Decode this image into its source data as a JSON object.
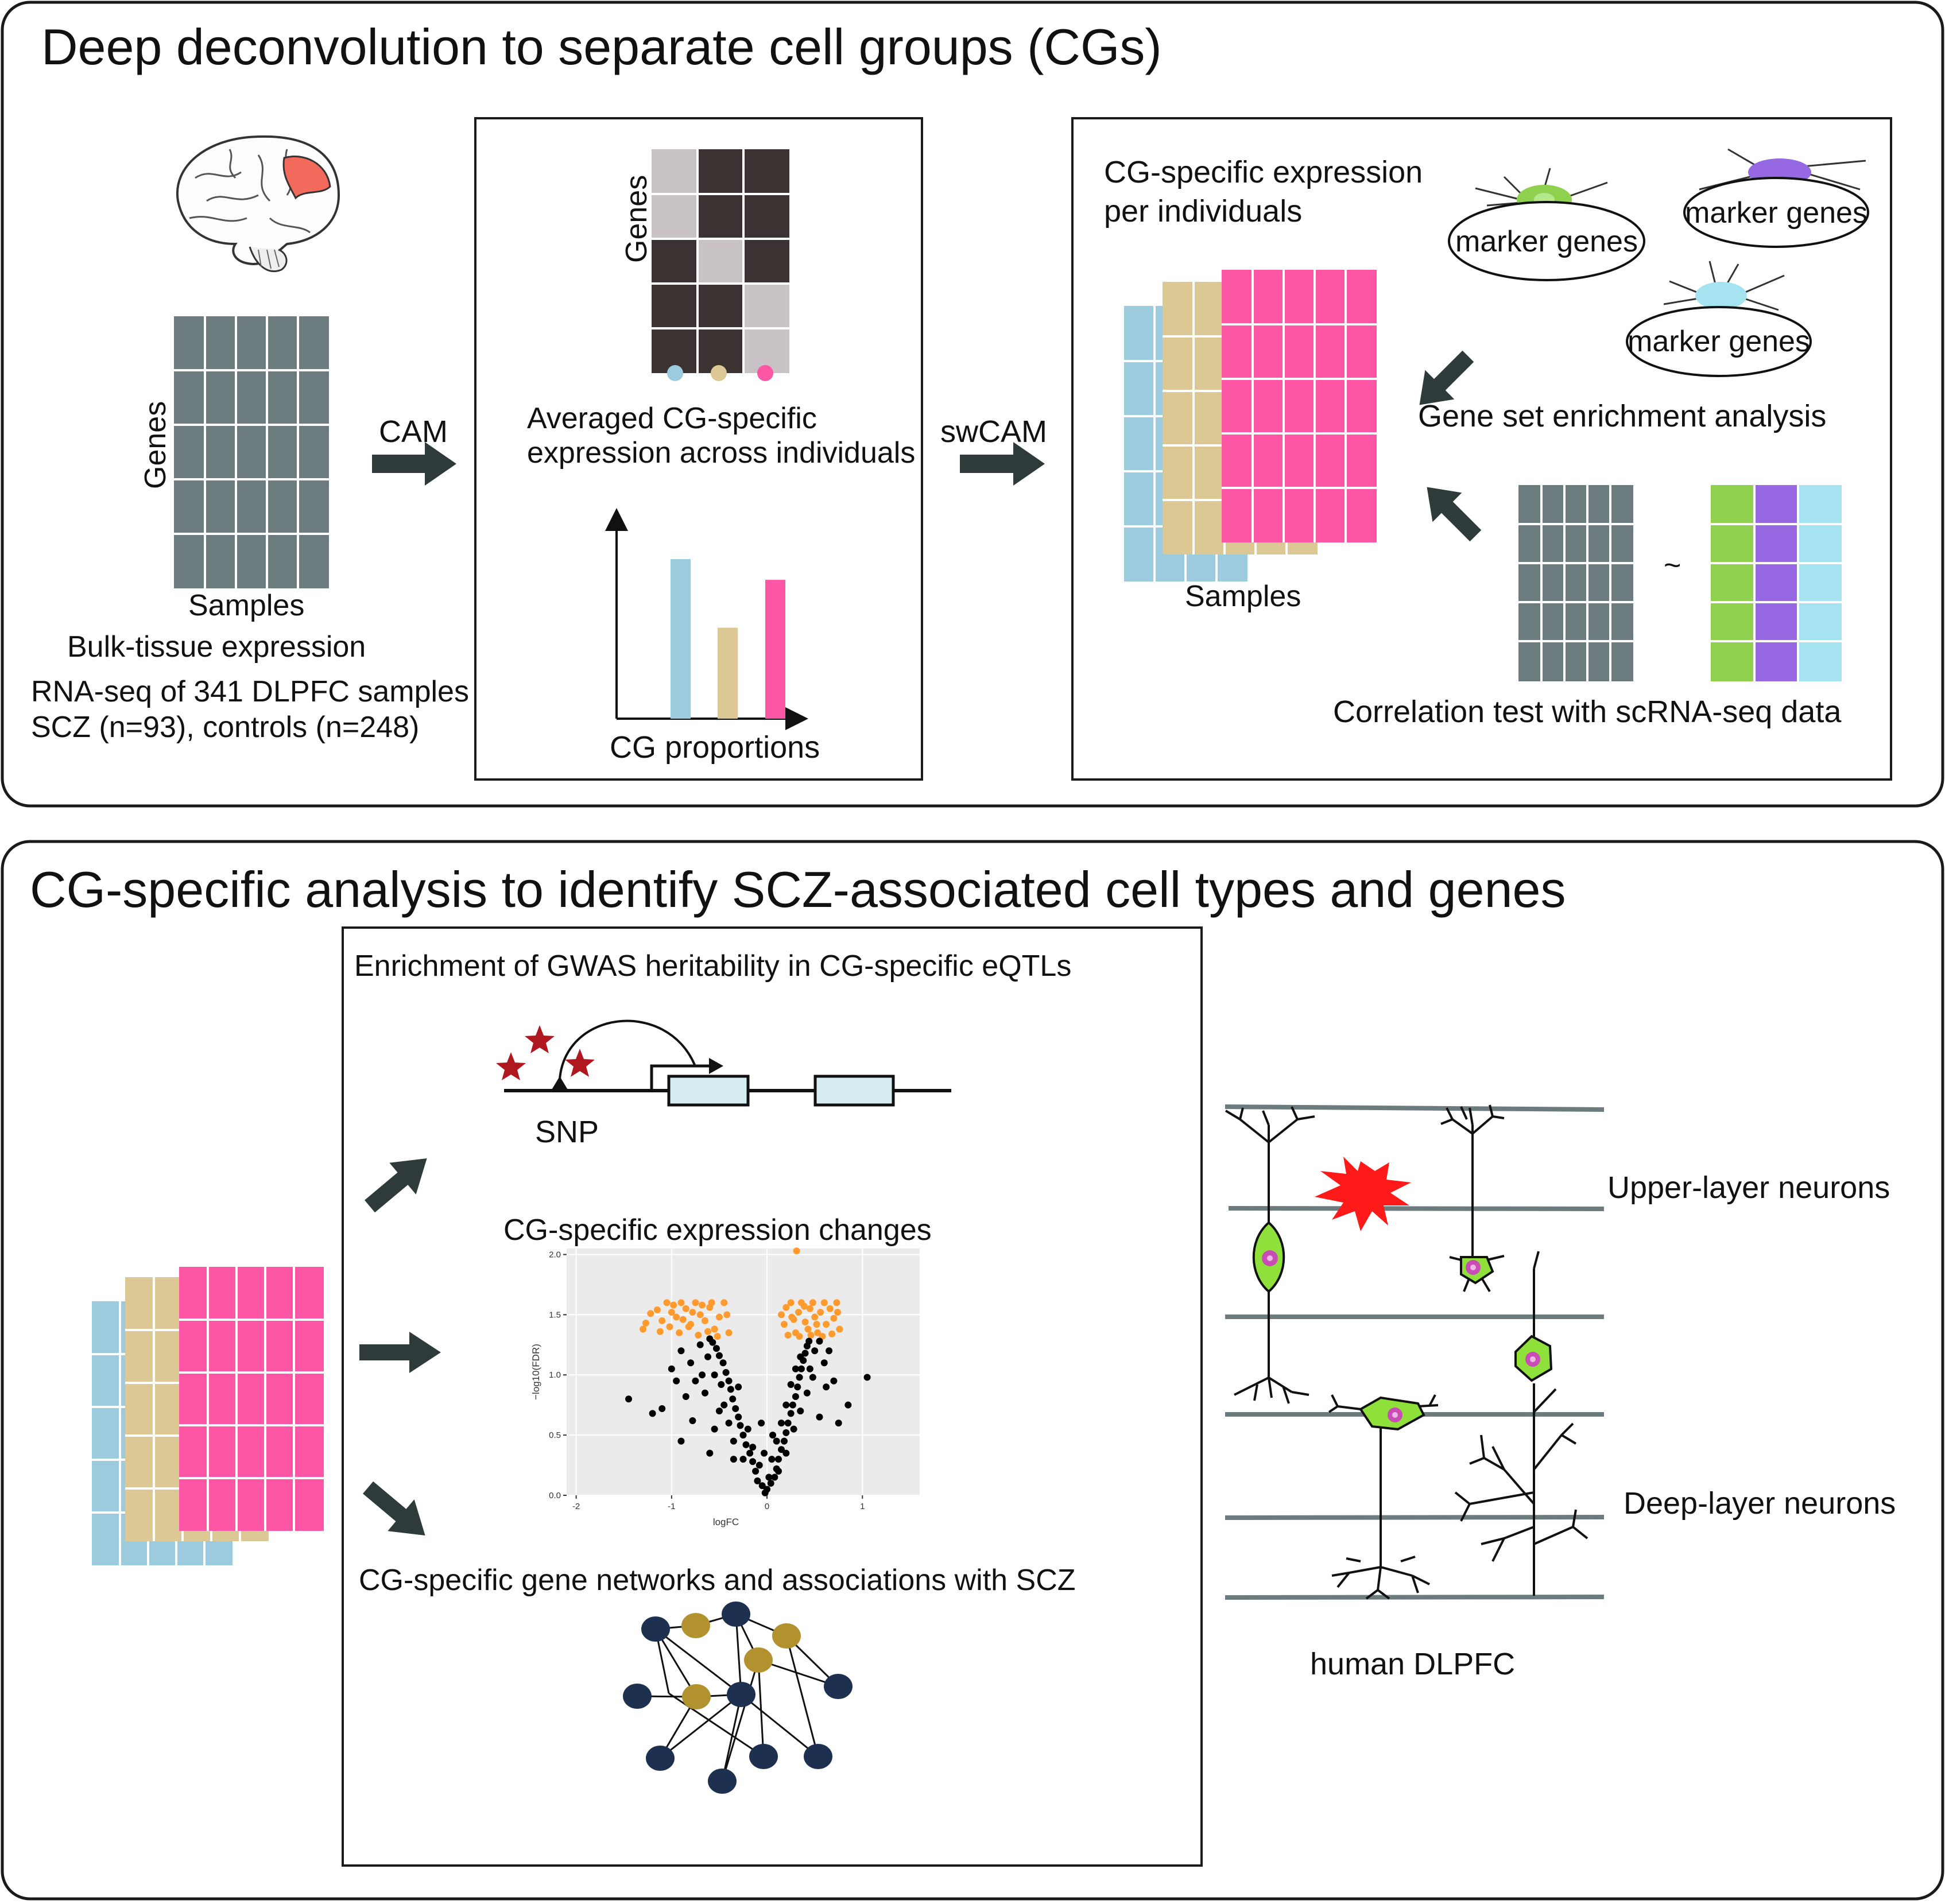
{
  "panel_top": {
    "title": "Deep deconvolution to separate cell groups (CGs)",
    "bulk": {
      "genes_label": "Genes",
      "samples_label": "Samples",
      "caption": "Bulk-tissue expression",
      "description_line1": "RNA-seq of 341 DLPFC samples",
      "description_line2": "SCZ (n=93),  controls (n=248)"
    },
    "arrow_cam": "CAM",
    "cam_box": {
      "genes_label": "Genes",
      "caption_line1": "Averaged CG-specific",
      "caption_line2": "expression across individuals",
      "proportions_label": "CG proportions",
      "proportions_values": [
        1.0,
        0.57,
        0.87
      ]
    },
    "arrow_swcam": "swCAM",
    "swcam_box": {
      "title_line1": "CG-specific expression",
      "title_line2": "per individuals",
      "samples_label": "Samples",
      "marker_genes": [
        "marker genes",
        "marker genes",
        "marker genes"
      ],
      "gsea_label": "Gene set enrichment analysis",
      "tilde": "~",
      "correlation_label": "Correlation test with scRNA-seq data"
    }
  },
  "panel_bottom": {
    "title": "CG-specific analysis to identify SCZ-associated cell types and genes",
    "gwas": {
      "title": "Enrichment of GWAS heritability in CG-specific eQTLs",
      "snp_label": "SNP"
    },
    "expression_changes": {
      "title": "CG-specific expression changes"
    },
    "networks": {
      "title": "CG-specific gene networks and associations with SCZ"
    },
    "dlpfc": {
      "upper_label": "Upper-layer neurons",
      "deep_label": "Deep-layer neurons",
      "caption": "human DLPFC"
    }
  },
  "colors": {
    "panel_border": "#1a1a1a",
    "matrix_gray": "#6b7b7e",
    "cg_blue": "#9ccbdd",
    "cg_tan": "#dcc894",
    "cg_pink": "#fd56a4",
    "heat_dark": "#3a3331",
    "heat_light": "#c8c1c5",
    "arrow": "#2f3a3a",
    "sc_green": "#8fd14f",
    "sc_purple": "#9668e2",
    "sc_cyan": "#a5e3f0",
    "volcano_sig": "#ff9b2e",
    "volcano_ns": "#000000",
    "volcano_bg": "#ebebeb",
    "network_navy": "#1e3050",
    "network_gold": "#b2912f",
    "star_red": "#b01820",
    "burst_red": "#ff1a1a",
    "neuron_green": "#8fe03a",
    "neuron_nucleus": "#c84db4",
    "layer_line": "#6b7b7e"
  },
  "chart_data": {
    "type": "scatter",
    "title": "",
    "xlabel": "logFC",
    "ylabel": "−log10(FDR)",
    "xlim": [
      -2.1,
      1.6
    ],
    "ylim": [
      0,
      2.05
    ],
    "x_ticks": [
      "-2",
      "-1",
      "0",
      "1"
    ],
    "x_tick_values": [
      -2,
      -1,
      0,
      1
    ],
    "y_ticks": [
      "0.0",
      "0.5",
      "1.0",
      "1.5",
      "2.0"
    ],
    "y_tick_values": [
      0.0,
      0.5,
      1.0,
      1.5,
      2.0
    ],
    "grid": true,
    "series": [
      {
        "significant": true,
        "color": "#ff9b2e",
        "points": [
          [
            -1.3,
            1.38
          ],
          [
            -1.27,
            1.43
          ],
          [
            -1.22,
            1.51
          ],
          [
            -1.15,
            1.54
          ],
          [
            -1.1,
            1.45
          ],
          [
            -1.05,
            1.6
          ],
          [
            -1.0,
            1.52
          ],
          [
            -0.95,
            1.48
          ],
          [
            -0.9,
            1.6
          ],
          [
            -0.85,
            1.55
          ],
          [
            -0.8,
            1.42
          ],
          [
            -0.75,
            1.6
          ],
          [
            -0.7,
            1.5
          ],
          [
            -0.65,
            1.45
          ],
          [
            -0.6,
            1.56
          ],
          [
            -0.55,
            1.38
          ],
          [
            -0.5,
            1.48
          ],
          [
            -0.45,
            1.6
          ],
          [
            -0.4,
            1.35
          ],
          [
            -0.52,
            1.32
          ],
          [
            -0.62,
            1.36
          ],
          [
            -0.72,
            1.33
          ],
          [
            -0.82,
            1.4
          ],
          [
            -0.92,
            1.35
          ],
          [
            -1.02,
            1.4
          ],
          [
            -1.12,
            1.36
          ],
          [
            -0.58,
            1.6
          ],
          [
            -0.68,
            1.58
          ],
          [
            -0.78,
            1.52
          ],
          [
            -0.88,
            1.46
          ],
          [
            -0.98,
            1.58
          ],
          [
            -0.42,
            1.5
          ],
          [
            0.15,
            1.5
          ],
          [
            0.18,
            1.42
          ],
          [
            0.2,
            1.56
          ],
          [
            0.25,
            1.6
          ],
          [
            0.28,
            1.46
          ],
          [
            0.3,
            1.35
          ],
          [
            0.33,
            1.52
          ],
          [
            0.36,
            1.6
          ],
          [
            0.4,
            1.44
          ],
          [
            0.43,
            1.38
          ],
          [
            0.45,
            1.55
          ],
          [
            0.48,
            1.6
          ],
          [
            0.5,
            1.48
          ],
          [
            0.53,
            1.35
          ],
          [
            0.56,
            1.52
          ],
          [
            0.6,
            1.6
          ],
          [
            0.62,
            1.42
          ],
          [
            0.66,
            1.55
          ],
          [
            0.7,
            1.47
          ],
          [
            0.73,
            1.6
          ],
          [
            0.76,
            1.38
          ],
          [
            0.22,
            1.33
          ],
          [
            0.34,
            1.32
          ],
          [
            0.46,
            1.33
          ],
          [
            0.58,
            1.32
          ],
          [
            0.68,
            1.34
          ],
          [
            0.74,
            1.52
          ],
          [
            0.26,
            1.48
          ],
          [
            0.39,
            1.57
          ],
          [
            0.52,
            1.42
          ],
          [
            0.31,
            2.03
          ]
        ]
      },
      {
        "significant": false,
        "color": "#000000",
        "points": [
          [
            -0.02,
            0.02
          ],
          [
            0.0,
            0.05
          ],
          [
            -0.05,
            0.08
          ],
          [
            0.04,
            0.1
          ],
          [
            -0.1,
            0.12
          ],
          [
            0.08,
            0.15
          ],
          [
            -0.12,
            0.2
          ],
          [
            0.1,
            0.22
          ],
          [
            -0.15,
            0.28
          ],
          [
            0.12,
            0.3
          ],
          [
            -0.18,
            0.35
          ],
          [
            0.15,
            0.38
          ],
          [
            -0.22,
            0.42
          ],
          [
            0.18,
            0.45
          ],
          [
            -0.25,
            0.5
          ],
          [
            0.2,
            0.52
          ],
          [
            -0.28,
            0.58
          ],
          [
            0.22,
            0.6
          ],
          [
            -0.3,
            0.65
          ],
          [
            0.25,
            0.68
          ],
          [
            -0.33,
            0.72
          ],
          [
            0.27,
            0.75
          ],
          [
            -0.36,
            0.8
          ],
          [
            0.3,
            0.82
          ],
          [
            -0.38,
            0.88
          ],
          [
            0.32,
            0.9
          ],
          [
            -0.4,
            0.95
          ],
          [
            0.34,
            0.98
          ],
          [
            -0.43,
            1.02
          ],
          [
            0.36,
            1.05
          ],
          [
            -0.46,
            1.1
          ],
          [
            0.38,
            1.12
          ],
          [
            -0.5,
            1.16
          ],
          [
            0.4,
            1.18
          ],
          [
            -0.53,
            1.22
          ],
          [
            0.42,
            1.24
          ],
          [
            -0.57,
            1.27
          ],
          [
            0.44,
            1.28
          ],
          [
            -0.6,
            1.3
          ],
          [
            -0.2,
            0.55
          ],
          [
            -0.3,
            0.9
          ],
          [
            -0.45,
            0.75
          ],
          [
            -0.55,
            1.0
          ],
          [
            -0.62,
            1.15
          ],
          [
            -0.7,
            1.25
          ],
          [
            -0.8,
            1.1
          ],
          [
            -0.9,
            1.2
          ],
          [
            -1.0,
            1.05
          ],
          [
            -0.75,
            0.95
          ],
          [
            -0.65,
            0.85
          ],
          [
            -0.5,
            0.7
          ],
          [
            -0.4,
            0.6
          ],
          [
            -0.35,
            0.45
          ],
          [
            -0.25,
            0.3
          ],
          [
            0.05,
            0.3
          ],
          [
            0.1,
            0.45
          ],
          [
            0.15,
            0.6
          ],
          [
            0.2,
            0.75
          ],
          [
            0.25,
            0.92
          ],
          [
            0.3,
            1.05
          ],
          [
            0.35,
            1.15
          ],
          [
            0.45,
            1.05
          ],
          [
            0.5,
            1.2
          ],
          [
            0.55,
            1.28
          ],
          [
            0.42,
            0.85
          ],
          [
            0.35,
            0.7
          ],
          [
            0.28,
            0.55
          ],
          [
            0.2,
            0.35
          ],
          [
            0.12,
            0.2
          ],
          [
            -0.08,
            0.25
          ],
          [
            -0.15,
            0.4
          ],
          [
            -0.35,
            0.3
          ],
          [
            -1.45,
            0.8
          ],
          [
            -1.1,
            0.72
          ],
          [
            -0.9,
            0.45
          ],
          [
            -0.78,
            0.62
          ],
          [
            -0.6,
            0.35
          ],
          [
            -0.55,
            0.55
          ],
          [
            0.6,
            1.1
          ],
          [
            0.62,
            0.9
          ],
          [
            0.55,
            0.65
          ],
          [
            0.7,
            0.95
          ],
          [
            0.85,
            0.75
          ],
          [
            0.75,
            0.6
          ],
          [
            1.05,
            0.98
          ],
          [
            -0.68,
            1.0
          ],
          [
            -0.85,
            0.82
          ],
          [
            -0.48,
            0.92
          ],
          [
            0.48,
            0.98
          ],
          [
            0.65,
            1.2
          ],
          [
            -1.2,
            0.68
          ],
          [
            -0.95,
            0.95
          ],
          [
            0.02,
            0.15
          ],
          [
            -0.03,
            0.35
          ],
          [
            0.06,
            0.5
          ],
          [
            -0.06,
            0.6
          ]
        ]
      }
    ]
  }
}
